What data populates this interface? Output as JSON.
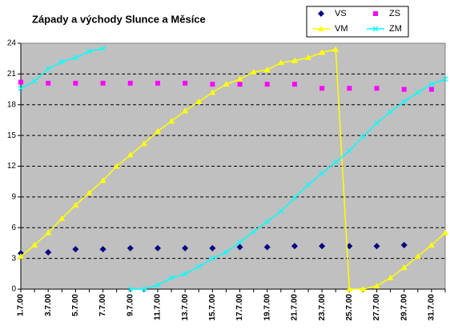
{
  "chart_data": {
    "type": "line",
    "title": "Západy a východy Slunce a Měsíce",
    "categories": [
      "1.7.00",
      null,
      "3.7.00",
      null,
      "5.7.00",
      null,
      "7.7.00",
      null,
      "9.7.00",
      null,
      "11.7.00",
      null,
      "13.7.00",
      null,
      "15.7.00",
      null,
      "17.7.00",
      null,
      "19.7.00",
      null,
      "21.7.00",
      null,
      "23.7.00",
      null,
      "25.7.00",
      null,
      "27.7.00",
      null,
      "29.7.00",
      null,
      "31.7.00",
      null
    ],
    "ylim": [
      0,
      24
    ],
    "yticks": [
      0,
      3,
      6,
      9,
      12,
      15,
      18,
      21,
      24
    ],
    "grid": true,
    "legend": "top-right",
    "series": [
      {
        "name": "VS",
        "color": "#000080",
        "marker": "diamond",
        "line": false,
        "values": [
          3.5,
          null,
          3.6,
          null,
          3.9,
          null,
          3.9,
          null,
          4.0,
          null,
          4.0,
          null,
          4.0,
          null,
          4.0,
          null,
          4.1,
          null,
          4.1,
          null,
          4.2,
          null,
          4.2,
          null,
          4.2,
          null,
          4.2,
          null,
          4.3,
          null,
          null,
          null
        ]
      },
      {
        "name": "VM",
        "color": "#ffff00",
        "marker": "triangle",
        "line": true,
        "values": [
          3.2,
          4.3,
          5.5,
          6.9,
          8.2,
          9.4,
          10.6,
          12.0,
          13.1,
          14.2,
          15.4,
          16.4,
          17.4,
          18.3,
          19.2,
          20.0,
          20.5,
          21.2,
          21.4,
          22.1,
          22.3,
          22.6,
          23.1,
          23.4,
          0.0,
          0.0,
          0.3,
          1.1,
          2.1,
          3.2,
          4.3,
          5.5
        ]
      },
      {
        "name": "ZS",
        "color": "#ff00ff",
        "marker": "square",
        "line": false,
        "values": [
          20.2,
          null,
          20.1,
          null,
          20.1,
          null,
          20.1,
          null,
          20.1,
          null,
          20.1,
          null,
          20.1,
          null,
          20.0,
          null,
          20.0,
          null,
          20.0,
          null,
          20.0,
          null,
          19.6,
          null,
          19.6,
          null,
          19.6,
          null,
          19.5,
          null,
          19.5,
          null
        ]
      },
      {
        "name": "ZM",
        "color": "#00ffff",
        "marker": "x",
        "line": true,
        "values": [
          19.6,
          20.3,
          21.5,
          22.2,
          22.6,
          23.2,
          23.5,
          null,
          0.0,
          0.0,
          0.4,
          1.1,
          1.5,
          2.2,
          3.0,
          3.6,
          4.6,
          5.6,
          6.6,
          7.6,
          8.9,
          10.2,
          11.3,
          12.4,
          13.5,
          14.9,
          16.2,
          17.3,
          18.3,
          19.2,
          20.0,
          20.5
        ]
      }
    ]
  }
}
